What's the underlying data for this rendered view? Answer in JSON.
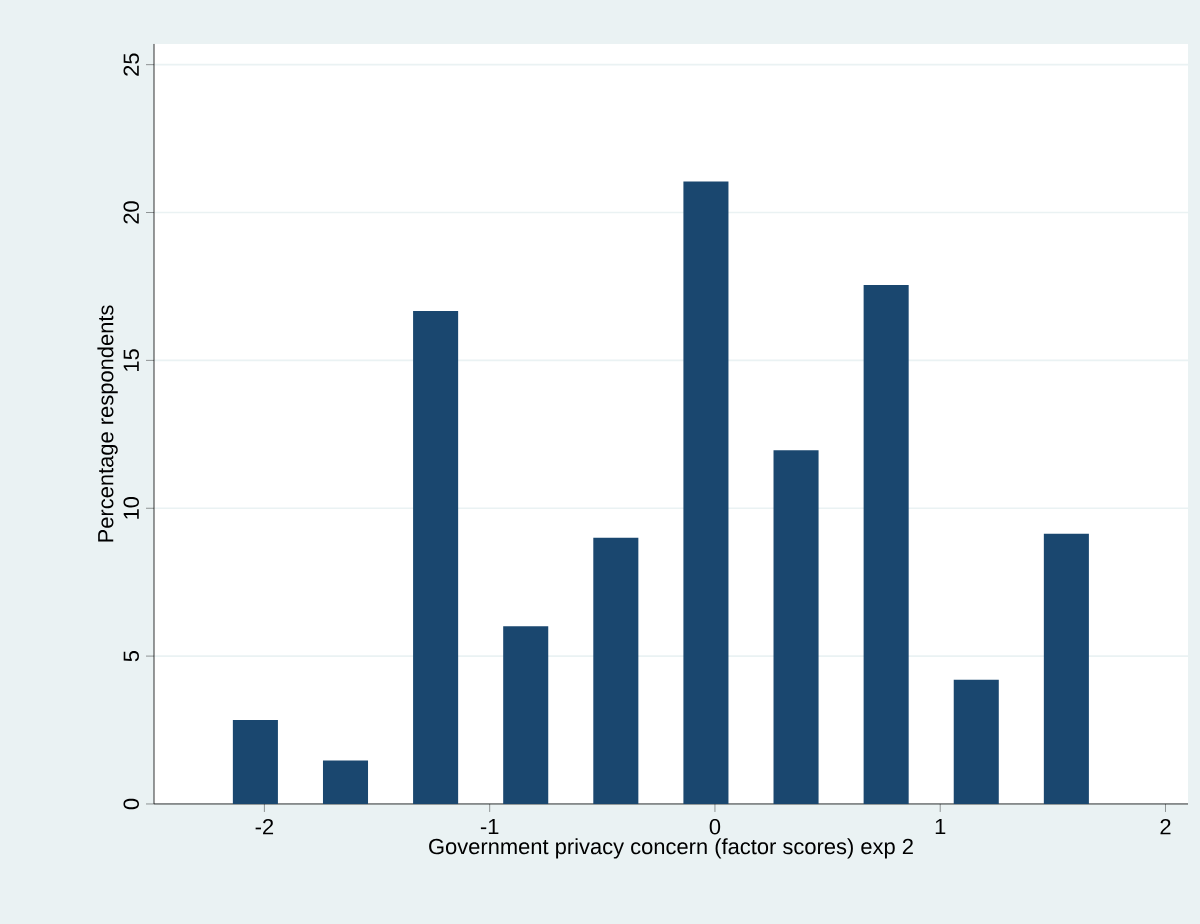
{
  "chart_data": {
    "type": "bar",
    "xlabel": "Government privacy concern (factor scores) exp 2",
    "ylabel": "Percentage respondents",
    "x": [
      -2.04,
      -1.64,
      -1.24,
      -0.84,
      -0.44,
      -0.04,
      0.36,
      0.76,
      1.16,
      1.56
    ],
    "values": [
      2.84,
      1.47,
      16.67,
      6.01,
      9.0,
      21.05,
      11.96,
      17.55,
      4.2,
      9.14
    ],
    "color": "#1a476f",
    "xlim": [
      -2.49,
      2.1
    ],
    "ylim": [
      0,
      25.7
    ],
    "xticks": [
      -2,
      -1,
      0,
      1,
      2
    ],
    "yticks": [
      0,
      5,
      10,
      15,
      20,
      25
    ],
    "grid": "y"
  }
}
